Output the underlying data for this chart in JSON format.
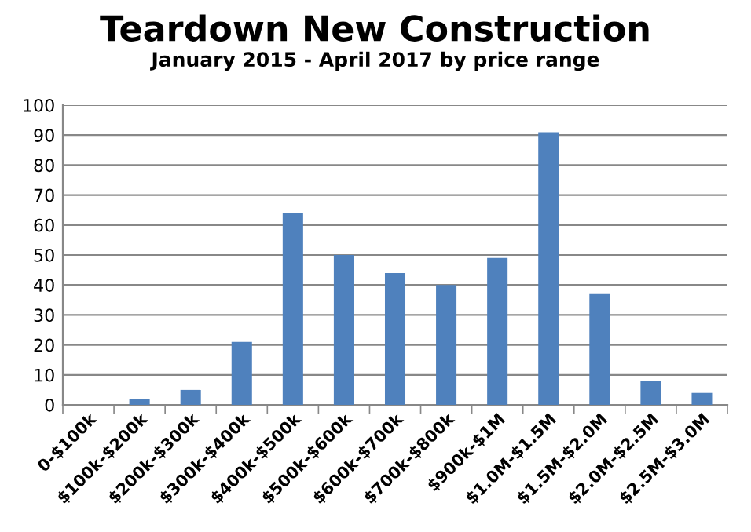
{
  "chart_data": {
    "type": "bar",
    "title": "Teardown New Construction",
    "subtitle": "January 2015 - April 2017 by price range",
    "categories": [
      "0-$100k",
      "$100k-$200k",
      "$200k-$300k",
      "$300k-$400k",
      "$400k-$500k",
      "$500k-$600k",
      "$600k-$700k",
      "$700k-$800k",
      "$900k-$1M",
      "$1.0M-$1.5M",
      "$1.5M-$2.0M",
      "$2.0M-$2.5M",
      "$2.5M-$3.0M"
    ],
    "values": [
      0,
      2,
      5,
      21,
      64,
      50,
      44,
      40,
      49,
      91,
      37,
      8,
      4
    ],
    "color": "#4f81bd",
    "ylim": [
      0,
      100
    ],
    "yticks": [
      0,
      10,
      20,
      30,
      40,
      50,
      60,
      70,
      80,
      90,
      100
    ],
    "grid": "y",
    "legend": false
  }
}
